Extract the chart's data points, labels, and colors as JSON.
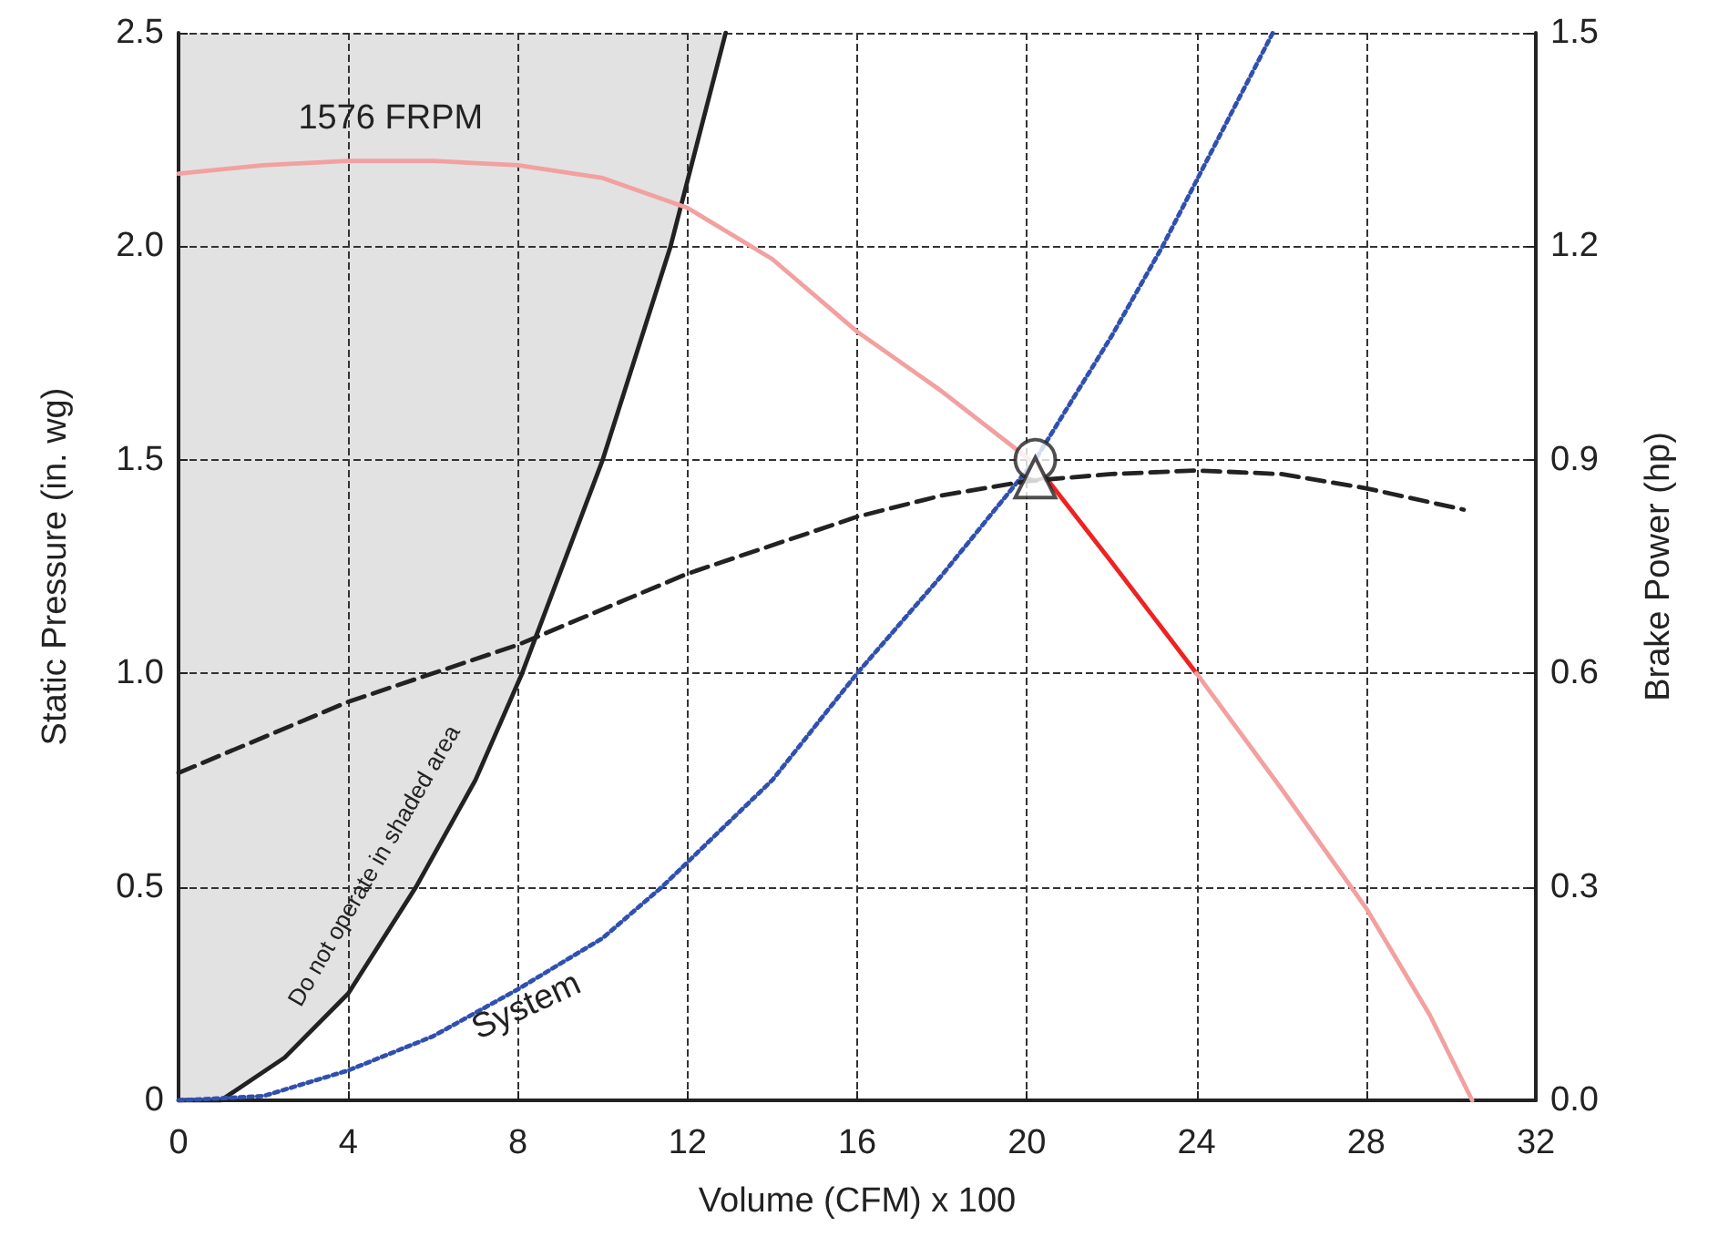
{
  "chart_data": {
    "type": "line",
    "xlabel": "Volume (CFM) x 100",
    "ylabel": "Static Pressure (in. wg)",
    "y2label": "Brake Power (hp)",
    "xlim": [
      0,
      32
    ],
    "xticks": [
      0,
      4,
      8,
      12,
      16,
      20,
      24,
      28,
      32
    ],
    "ylim": [
      0,
      2.5
    ],
    "yticks": [
      0,
      {
        "value": 0.5,
        "label": "0.5"
      },
      {
        "value": 1,
        "label": "1.0"
      },
      {
        "value": 1.5,
        "label": "1.5"
      },
      {
        "value": 2,
        "label": "2.0"
      },
      {
        "value": 2.5,
        "label": "2.5"
      }
    ],
    "y2lim": [
      0,
      1.5
    ],
    "y2ticks": [
      {
        "value": 0,
        "label": "0.0"
      },
      0.3,
      0.6,
      0.9,
      1.2,
      1.5
    ],
    "grid": true,
    "series": [
      {
        "type": "line",
        "color": "#222222",
        "line_style": "solid",
        "x": [
          0,
          1,
          2.5,
          4,
          5.6,
          7,
          8.1,
          10,
          11.6,
          12.9
        ],
        "values": [
          0,
          0,
          0.1,
          0.25,
          0.5,
          0.75,
          1.0,
          1.5,
          2.0,
          2.5
        ]
      },
      {
        "color": "#f2a0a0",
        "line_style": "solid",
        "x": [
          0,
          2,
          4,
          6,
          8,
          10,
          12,
          14,
          16,
          18,
          20.2
        ],
        "values": [
          2.17,
          2.19,
          2.2,
          2.2,
          2.19,
          2.16,
          2.09,
          1.97,
          1.8,
          1.66,
          1.49
        ]
      },
      {
        "color": "#ee2222",
        "line_style": "solid",
        "x": [
          20.2,
          22,
          24
        ],
        "values": [
          1.49,
          1.26,
          1.0
        ]
      },
      {
        "color": "#f2a0a0",
        "line_style": "solid",
        "x": [
          24,
          26,
          28,
          29.5,
          30.5
        ],
        "values": [
          1.0,
          0.73,
          0.45,
          0.2,
          0
        ]
      },
      {
        "color": "#3050b0",
        "line_style": "dotted",
        "x": [
          0,
          2,
          4,
          6,
          8,
          10,
          11.4,
          14,
          16,
          18,
          20.2,
          22,
          23.2,
          25.8
        ],
        "values": [
          0,
          0.01,
          0.07,
          0.15,
          0.26,
          0.38,
          0.5,
          0.75,
          1.0,
          1.23,
          1.5,
          1.79,
          2.0,
          2.5
        ]
      },
      {
        "axis": "y2",
        "color": "#222222",
        "line_style": "dashed",
        "x": [
          0,
          4,
          8,
          12,
          16,
          18,
          20,
          22,
          24,
          26,
          28,
          30.3
        ],
        "values": [
          0.46,
          0.56,
          0.64,
          0.74,
          0.82,
          0.85,
          0.87,
          0.88,
          0.885,
          0.88,
          0.86,
          0.83
        ]
      },
      {
        "type": "scatter",
        "marker": "circle",
        "color": "#222222",
        "x": [
          20.2
        ],
        "values": [
          1.5
        ]
      },
      {
        "type": "scatter",
        "axis": "y2",
        "marker": "triangle",
        "color": "#222222",
        "x": [
          20.2
        ],
        "values": [
          0.875
        ]
      }
    ],
    "annotations": [
      "1576 FRPM",
      "System",
      "Do not operate in shaded area"
    ]
  }
}
